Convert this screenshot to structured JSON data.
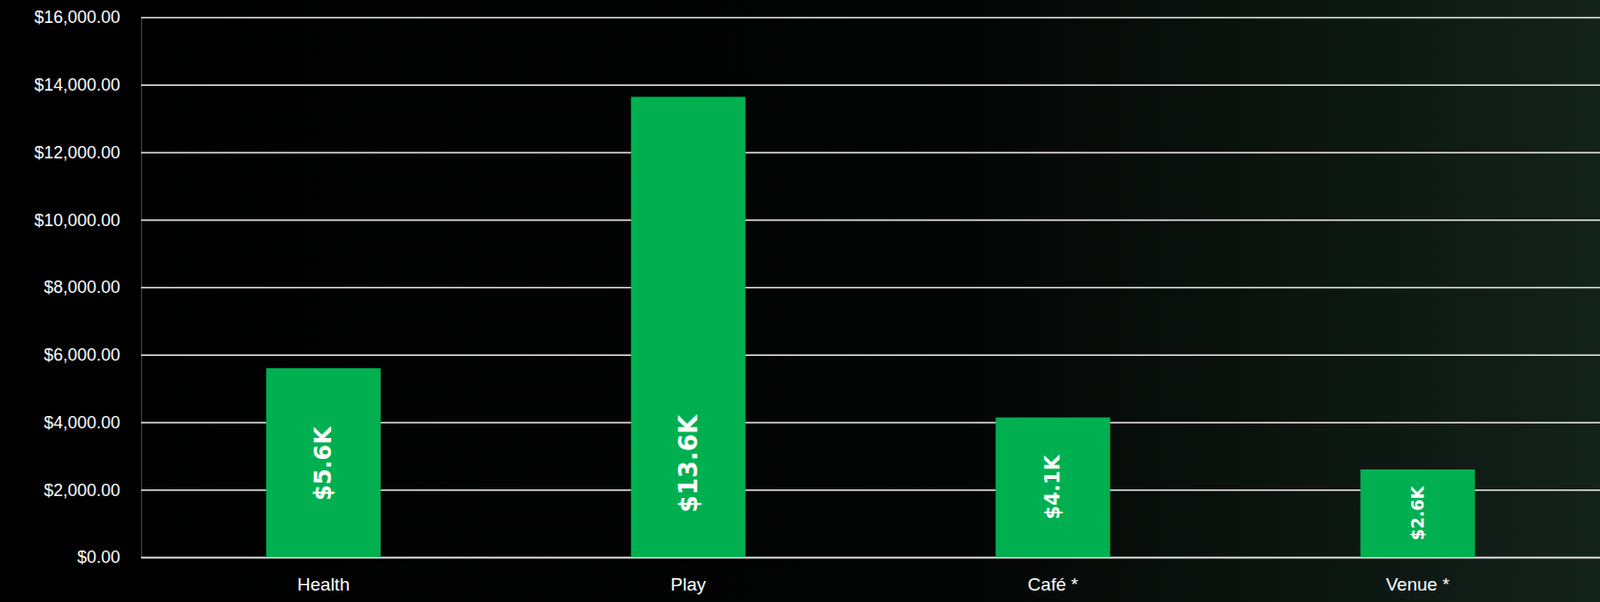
{
  "chart_data": {
    "type": "bar",
    "categories": [
      "Health",
      "Play",
      "Café *",
      "Venue *"
    ],
    "values": [
      5600,
      13640,
      4140,
      2600
    ],
    "value_labels": [
      "$5.6K",
      "$13.6K",
      "$4.1K",
      "$2.6K"
    ],
    "color": "#00b050",
    "ylim": [
      0,
      16000
    ],
    "yticks": [
      {
        "value": 0,
        "label": "$0.00"
      },
      {
        "value": 2000,
        "label": "$2,000.00"
      },
      {
        "value": 4000,
        "label": "$4,000.00"
      },
      {
        "value": 6000,
        "label": "$6,000.00"
      },
      {
        "value": 8000,
        "label": "$8,000.00"
      },
      {
        "value": 10000,
        "label": "$10,000.00"
      },
      {
        "value": 12000,
        "label": "$12,000.00"
      },
      {
        "value": 14000,
        "label": "$14,000.00"
      },
      {
        "value": 16000,
        "label": "$16,000.00"
      }
    ],
    "grid": true,
    "data_labels": true
  }
}
